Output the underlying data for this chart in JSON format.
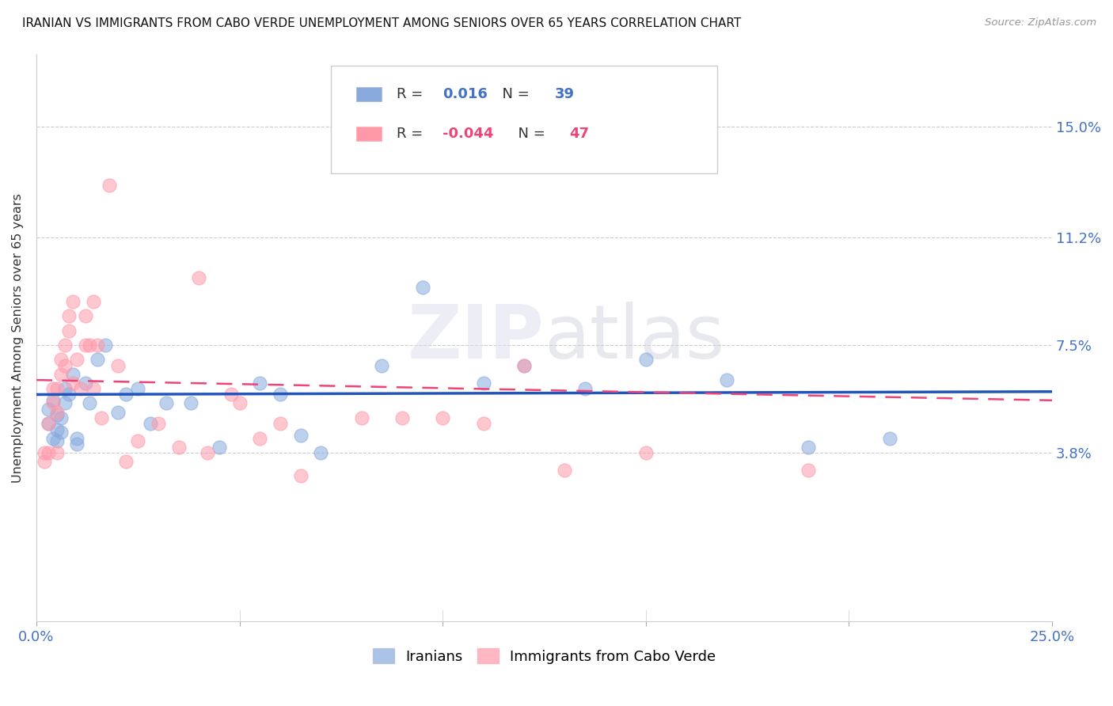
{
  "title": "IRANIAN VS IMMIGRANTS FROM CABO VERDE UNEMPLOYMENT AMONG SENIORS OVER 65 YEARS CORRELATION CHART",
  "source": "Source: ZipAtlas.com",
  "ylabel": "Unemployment Among Seniors over 65 years",
  "ytick_labels": [
    "15.0%",
    "11.2%",
    "7.5%",
    "3.8%"
  ],
  "ytick_values": [
    0.15,
    0.112,
    0.075,
    0.038
  ],
  "xlim": [
    0.0,
    0.25
  ],
  "ylim": [
    -0.02,
    0.175
  ],
  "legend_label1": "Iranians",
  "legend_label2": "Immigrants from Cabo Verde",
  "r1": "0.016",
  "n1": "39",
  "r2": "-0.044",
  "n2": "47",
  "color_blue": "#88AADD",
  "color_pink": "#FF99AA",
  "watermark": "ZIPatlas",
  "iranians_x": [
    0.003,
    0.003,
    0.004,
    0.004,
    0.005,
    0.005,
    0.005,
    0.006,
    0.006,
    0.007,
    0.007,
    0.008,
    0.009,
    0.01,
    0.01,
    0.012,
    0.013,
    0.015,
    0.017,
    0.02,
    0.022,
    0.025,
    0.028,
    0.032,
    0.038,
    0.045,
    0.055,
    0.06,
    0.065,
    0.07,
    0.085,
    0.095,
    0.11,
    0.12,
    0.135,
    0.15,
    0.17,
    0.19,
    0.21
  ],
  "iranians_y": [
    0.053,
    0.048,
    0.043,
    0.056,
    0.051,
    0.046,
    0.042,
    0.05,
    0.045,
    0.055,
    0.06,
    0.058,
    0.065,
    0.043,
    0.041,
    0.062,
    0.055,
    0.07,
    0.075,
    0.052,
    0.058,
    0.06,
    0.048,
    0.055,
    0.055,
    0.04,
    0.062,
    0.058,
    0.044,
    0.038,
    0.068,
    0.095,
    0.062,
    0.068,
    0.06,
    0.07,
    0.063,
    0.04,
    0.043
  ],
  "cabo_x": [
    0.002,
    0.002,
    0.003,
    0.003,
    0.004,
    0.004,
    0.005,
    0.005,
    0.005,
    0.006,
    0.006,
    0.007,
    0.007,
    0.008,
    0.008,
    0.009,
    0.009,
    0.01,
    0.011,
    0.012,
    0.012,
    0.013,
    0.014,
    0.014,
    0.015,
    0.016,
    0.018,
    0.02,
    0.022,
    0.025,
    0.03,
    0.035,
    0.04,
    0.042,
    0.048,
    0.05,
    0.055,
    0.06,
    0.065,
    0.08,
    0.09,
    0.1,
    0.11,
    0.12,
    0.13,
    0.15,
    0.19
  ],
  "cabo_y": [
    0.038,
    0.035,
    0.048,
    0.038,
    0.06,
    0.055,
    0.06,
    0.052,
    0.038,
    0.07,
    0.065,
    0.075,
    0.068,
    0.085,
    0.08,
    0.09,
    0.062,
    0.07,
    0.06,
    0.075,
    0.085,
    0.075,
    0.09,
    0.06,
    0.075,
    0.05,
    0.13,
    0.068,
    0.035,
    0.042,
    0.048,
    0.04,
    0.098,
    0.038,
    0.058,
    0.055,
    0.043,
    0.048,
    0.03,
    0.05,
    0.05,
    0.05,
    0.048,
    0.068,
    0.032,
    0.038,
    0.032
  ]
}
